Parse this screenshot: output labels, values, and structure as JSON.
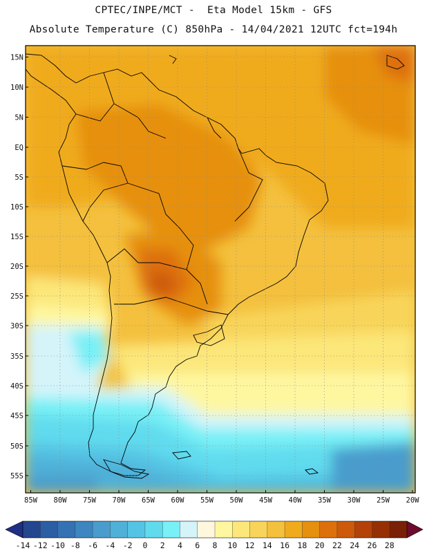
{
  "title_line1": "CPTEC/INPE/MCT -  Eta Model 15km - GFS",
  "title_line2": "Absolute Temperature (C) 850hPa - 14/04/2021 12UTC fct=194h",
  "lat_labels": [
    "15N",
    "10N",
    "5N",
    "EQ",
    "5S",
    "10S",
    "15S",
    "20S",
    "25S",
    "30S",
    "35S",
    "40S",
    "45S",
    "50S",
    "55S"
  ],
  "lon_labels": [
    "85W",
    "80W",
    "75W",
    "70W",
    "65W",
    "60W",
    "55W",
    "50W",
    "45W",
    "40W",
    "35W",
    "30W",
    "25W",
    "20W"
  ],
  "colorbar": {
    "labels": [
      "-14",
      "-12",
      "-10",
      "-8",
      "-6",
      "-4",
      "-2",
      "0",
      "2",
      "4",
      "6",
      "8",
      "10",
      "12",
      "14",
      "16",
      "18",
      "20",
      "22",
      "24",
      "26",
      "28"
    ],
    "colors": [
      "#23468f",
      "#2b5ea4",
      "#3373b4",
      "#3d86c0",
      "#4a9ccc",
      "#4fb0d8",
      "#55c4e4",
      "#60dbee",
      "#78f0f6",
      "#d4f4fa",
      "#fff6de",
      "#fef7a0",
      "#fce77a",
      "#f8d55a",
      "#f4c03e",
      "#f0ab1c",
      "#e69010",
      "#de700c",
      "#cc5a0a",
      "#b44208",
      "#963004",
      "#7a2006"
    ],
    "under_color": "#1f2f85",
    "over_color": "#6e0a2e"
  }
}
